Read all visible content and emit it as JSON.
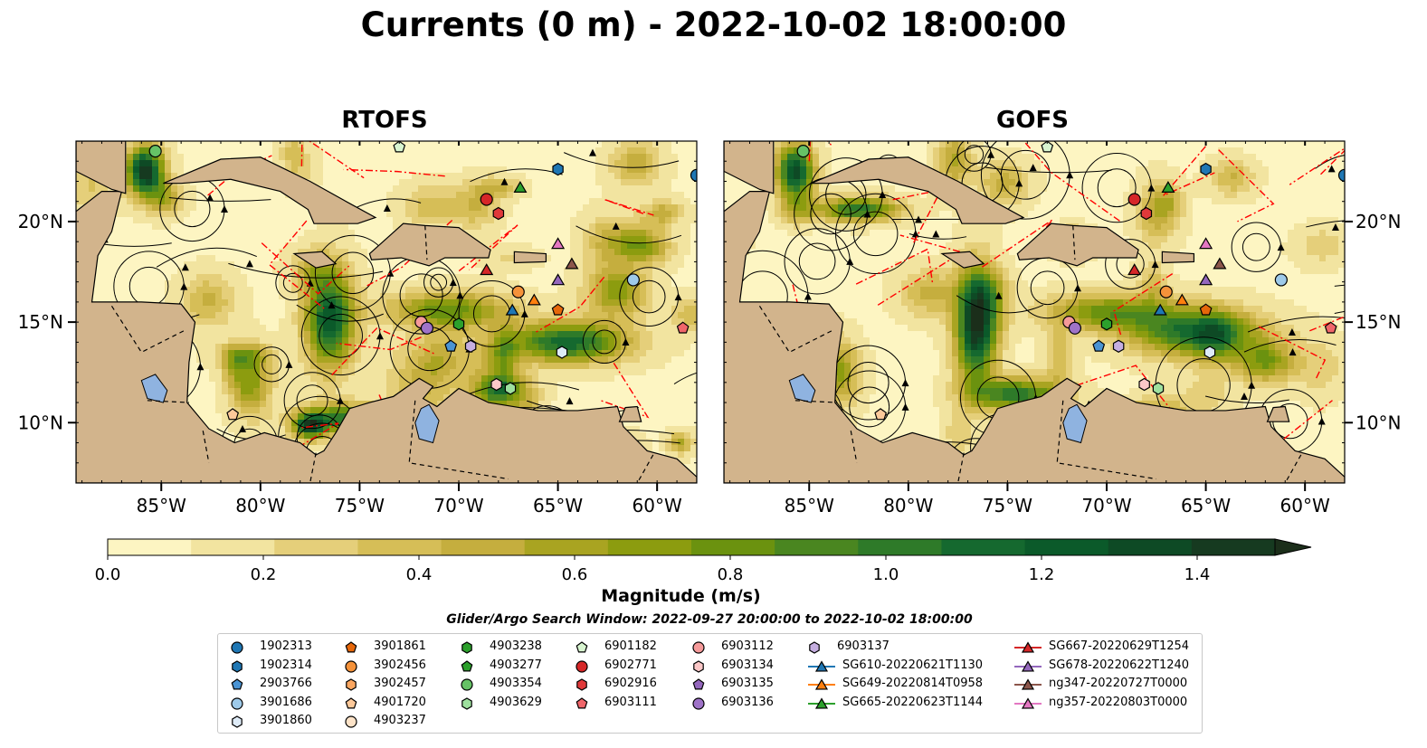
{
  "title": "Currents (0 m) - 2022-10-02 18:00:00",
  "panels": [
    {
      "title": "RTOFS",
      "field_seed": 1
    },
    {
      "title": "GOFS",
      "field_seed": 2
    }
  ],
  "map": {
    "lon_range": [
      -89.3,
      -58.0
    ],
    "lat_range": [
      7.0,
      24.0
    ],
    "lon_ticks": [
      -85,
      -80,
      -75,
      -70,
      -65,
      -60
    ],
    "lon_tick_labels": [
      "85°W",
      "80°W",
      "75°W",
      "70°W",
      "65°W",
      "60°W"
    ],
    "lat_ticks": [
      10,
      15,
      20
    ],
    "lat_tick_labels": [
      "10°N",
      "15°N",
      "20°N"
    ],
    "land_color": "#d2b48c",
    "lake_color": "#8fb3e0",
    "eez_color": "#ff0000"
  },
  "colorbar": {
    "label": "Magnitude (m/s)",
    "range": [
      0.0,
      1.5
    ],
    "extend": "max",
    "ticks": [
      "0.0",
      "0.2",
      "0.4",
      "0.6",
      "0.8",
      "1.0",
      "1.2",
      "1.4"
    ],
    "tick_values": [
      0.0,
      0.2,
      0.4,
      0.6,
      0.8,
      1.0,
      1.2,
      1.4
    ],
    "colors": [
      "#fdf5c2",
      "#f2e4a0",
      "#e5cf7a",
      "#d6be57",
      "#c5ae3e",
      "#a9a421",
      "#8c9c0f",
      "#6b920f",
      "#4a8620",
      "#2e7a29",
      "#15692f",
      "#0b5a2a",
      "#0e4a25",
      "#163a20",
      "#1b2e1a"
    ]
  },
  "search_window": "Glider/Argo Search Window: 2022-09-27 20:00:00 to 2022-10-02 18:00:00",
  "legend": {
    "columns": [
      [
        {
          "label": "1902313",
          "marker": "circle",
          "color": "#1f77b4"
        },
        {
          "label": "1902314",
          "marker": "hexagon",
          "color": "#1f77b4"
        },
        {
          "label": "2903766",
          "marker": "pentagon",
          "color": "#4a94d4"
        },
        {
          "label": "3901686",
          "marker": "circle",
          "color": "#9ecae9"
        },
        {
          "label": "3901860",
          "marker": "hexagon",
          "color": "#deebf7"
        }
      ],
      [
        {
          "label": "3901861",
          "marker": "pentagon",
          "color": "#e6670a"
        },
        {
          "label": "3902456",
          "marker": "circle",
          "color": "#f5923a"
        },
        {
          "label": "3902457",
          "marker": "hexagon",
          "color": "#fba660"
        },
        {
          "label": "4901720",
          "marker": "pentagon",
          "color": "#fdc99a"
        },
        {
          "label": "4903237",
          "marker": "circle",
          "color": "#fde3c8"
        }
      ],
      [
        {
          "label": "4903238",
          "marker": "hexagon",
          "color": "#2ca02c"
        },
        {
          "label": "4903277",
          "marker": "pentagon",
          "color": "#2ca02c"
        },
        {
          "label": "4903354",
          "marker": "circle",
          "color": "#66c266"
        },
        {
          "label": "4903629",
          "marker": "hexagon",
          "color": "#9ee09e"
        }
      ],
      [
        {
          "label": "6901182",
          "marker": "pentagon",
          "color": "#d8f5d0"
        },
        {
          "label": "6902771",
          "marker": "circle",
          "color": "#d62728"
        },
        {
          "label": "6902916",
          "marker": "hexagon",
          "color": "#e0393a"
        },
        {
          "label": "6903111",
          "marker": "pentagon",
          "color": "#f0666a"
        }
      ],
      [
        {
          "label": "6903112",
          "marker": "circle",
          "color": "#f59a9a"
        },
        {
          "label": "6903134",
          "marker": "hexagon",
          "color": "#fcc8c8"
        },
        {
          "label": "6903135",
          "marker": "pentagon",
          "color": "#9467bd"
        },
        {
          "label": "6903136",
          "marker": "circle",
          "color": "#9f73c8"
        }
      ],
      [
        {
          "label": "6903137",
          "marker": "hexagon",
          "color": "#c5aee0"
        },
        {
          "label": "SG610-20220621T1130",
          "marker": "triangle-line",
          "color": "#1f77b4"
        },
        {
          "label": "SG649-20220814T0958",
          "marker": "triangle-line",
          "color": "#ff7f0e"
        },
        {
          "label": "SG665-20220623T1144",
          "marker": "triangle-line",
          "color": "#2ca02c"
        }
      ],
      [
        {
          "label": "SG667-20220629T1254",
          "marker": "triangle-line",
          "color": "#d62728"
        },
        {
          "label": "SG678-20220622T1240",
          "marker": "triangle-line",
          "color": "#9467bd"
        },
        {
          "label": "ng347-20220727T0000",
          "marker": "triangle-line",
          "color": "#8c564b"
        },
        {
          "label": "ng357-20220803T0000",
          "marker": "triangle-line",
          "color": "#e377c2"
        }
      ]
    ]
  },
  "observations": [
    {
      "id": "1902313",
      "lon": -58.0,
      "lat": 22.3
    },
    {
      "id": "1902314",
      "lon": -65.0,
      "lat": 22.6
    },
    {
      "id": "3901686",
      "lon": -61.2,
      "lat": 17.1
    },
    {
      "id": "3901860",
      "lon": -64.8,
      "lat": 13.5
    },
    {
      "id": "3901861",
      "lon": -65.0,
      "lat": 15.6
    },
    {
      "id": "3902456",
      "lon": -67.0,
      "lat": 16.5
    },
    {
      "id": "4901720",
      "lon": -81.4,
      "lat": 10.4
    },
    {
      "id": "4903238",
      "lon": -70.0,
      "lat": 14.9
    },
    {
      "id": "4903354",
      "lon": -85.3,
      "lat": 23.5
    },
    {
      "id": "4903629",
      "lon": -67.4,
      "lat": 11.7
    },
    {
      "id": "6901182",
      "lon": -73.0,
      "lat": 23.7
    },
    {
      "id": "6902771",
      "lon": -68.6,
      "lat": 21.1
    },
    {
      "id": "6902916",
      "lon": -68.0,
      "lat": 20.4
    },
    {
      "id": "6903111",
      "lon": -58.7,
      "lat": 14.7
    },
    {
      "id": "6903112",
      "lon": -71.9,
      "lat": 15.0
    },
    {
      "id": "6903134",
      "lon": -68.1,
      "lat": 11.9
    },
    {
      "id": "6903136",
      "lon": -71.6,
      "lat": 14.7
    },
    {
      "id": "6903137",
      "lon": -69.4,
      "lat": 13.8
    },
    {
      "id": "2903766",
      "lon": -70.4,
      "lat": 13.8
    },
    {
      "id": "SG610-20220621T1130",
      "lon": -67.3,
      "lat": 15.6
    },
    {
      "id": "SG649-20220814T0958",
      "lon": -66.2,
      "lat": 16.1
    },
    {
      "id": "SG665-20220623T1144",
      "lon": -66.9,
      "lat": 21.7
    },
    {
      "id": "SG667-20220629T1254",
      "lon": -68.6,
      "lat": 17.6
    },
    {
      "id": "SG678-20220622T1240",
      "lon": -65.0,
      "lat": 17.1
    },
    {
      "id": "ng347-20220727T0000",
      "lon": -64.3,
      "lat": 17.9
    },
    {
      "id": "ng357-20220803T0000",
      "lon": -65.0,
      "lat": 18.9
    }
  ]
}
